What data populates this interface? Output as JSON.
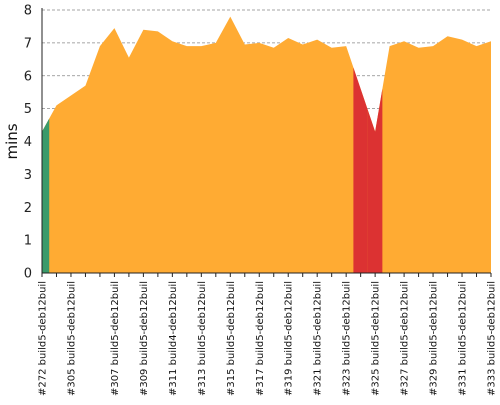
{
  "chart_data": {
    "type": "area",
    "ylabel": "mins",
    "xlabel": "",
    "ylim": [
      0,
      8
    ],
    "yticks": [
      0,
      1,
      2,
      3,
      4,
      5,
      6,
      7,
      8
    ],
    "grid": true,
    "builds": [
      {
        "label": "#272 build5-deb12buil",
        "status": "success",
        "value": 4.3
      },
      {
        "label": "",
        "status": "success",
        "value": 5.1
      },
      {
        "label": "#305 build5-deb12buil",
        "status": "success",
        "value": 5.4
      },
      {
        "label": "",
        "status": "success",
        "value": 5.7
      },
      {
        "label": "",
        "status": "success",
        "value": 6.9
      },
      {
        "label": "#307 build5-deb12buil",
        "status": "success",
        "value": 7.45
      },
      {
        "label": "",
        "status": "success",
        "value": 6.55
      },
      {
        "label": "#309 build5-deb12buil",
        "status": "success",
        "value": 7.4
      },
      {
        "label": "",
        "status": "success",
        "value": 7.35
      },
      {
        "label": "#311 build4-deb12buil",
        "status": "success",
        "value": 7.05
      },
      {
        "label": "",
        "status": "success",
        "value": 6.9
      },
      {
        "label": "#313 build5-deb12buil",
        "status": "success",
        "value": 6.9
      },
      {
        "label": "",
        "status": "success",
        "value": 7.0
      },
      {
        "label": "#315 build5-deb12buil",
        "status": "success",
        "value": 7.8
      },
      {
        "label": "",
        "status": "success",
        "value": 6.95
      },
      {
        "label": "#317 build5-deb12buil",
        "status": "success",
        "value": 7.0
      },
      {
        "label": "",
        "status": "success",
        "value": 6.85
      },
      {
        "label": "#319 build5-deb12buil",
        "status": "success",
        "value": 7.15
      },
      {
        "label": "",
        "status": "success",
        "value": 6.95
      },
      {
        "label": "#321 build5-deb12buil",
        "status": "success",
        "value": 7.1
      },
      {
        "label": "",
        "status": "success",
        "value": 6.85
      },
      {
        "label": "#323 build5-deb12buil",
        "status": "success",
        "value": 6.9
      },
      {
        "label": "",
        "status": "failure",
        "value": 5.6
      },
      {
        "label": "#325 build5-deb12buil",
        "status": "failure",
        "value": 4.3
      },
      {
        "label": "",
        "status": "success",
        "value": 6.9
      },
      {
        "label": "#327 build5-deb12buil",
        "status": "success",
        "value": 7.05
      },
      {
        "label": "",
        "status": "success",
        "value": 6.85
      },
      {
        "label": "#329 build5-deb12buil",
        "status": "success",
        "value": 6.9
      },
      {
        "label": "",
        "status": "success",
        "value": 7.2
      },
      {
        "label": "#331 build5-deb12buil",
        "status": "success",
        "value": 7.1
      },
      {
        "label": "",
        "status": "success",
        "value": 6.9
      },
      {
        "label": "#333 build5-deb12buil",
        "status": "success",
        "value": 7.05
      }
    ],
    "colors": {
      "normal": "#ffab33",
      "success_first": "#3a9a6a",
      "failure": "#dc3232",
      "grid": "#888888",
      "axis": "#222222"
    }
  }
}
